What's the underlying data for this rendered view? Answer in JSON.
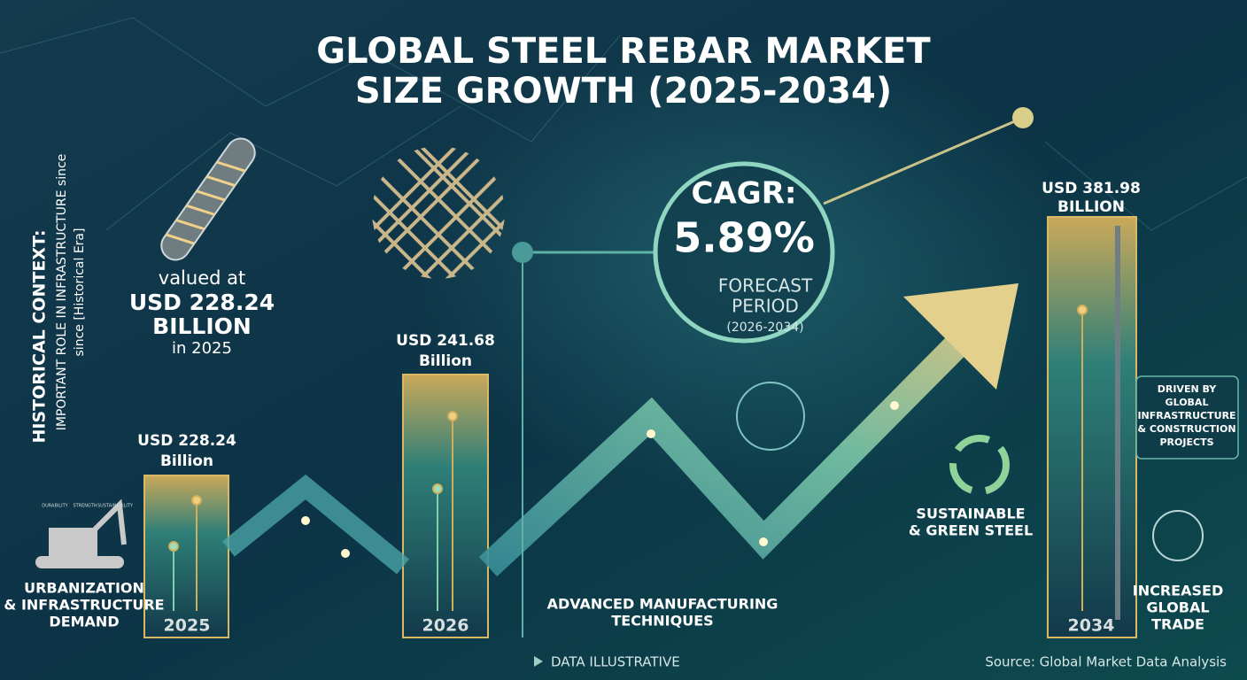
{
  "title_lines": [
    "GLOBAL STEEL REBAR MARKET",
    "SIZE GROWTH (2025-2034)"
  ],
  "historical_context": {
    "heading": "HISTORICAL CONTEXT:",
    "lines": [
      "IMPORTANT ROLE IN INFRASTRUCTURE since",
      "since [Historical Era]"
    ]
  },
  "icon_labels": [
    "DURABILITY",
    "STRENGTH",
    "SUSTAINABILITY"
  ],
  "highlight": {
    "prefix": "valued at",
    "amount": "USD 228.24",
    "unit": "BILLION",
    "suffix": "in 2025"
  },
  "cagr": {
    "label": "CAGR:",
    "value": "5.89%",
    "period_lines": [
      "FORECAST",
      "PERIOD"
    ],
    "range": "(2026-2034)"
  },
  "bars": [
    {
      "year": "2025",
      "value_lines": [
        "USD 228.24",
        "Billion"
      ]
    },
    {
      "year": "2026",
      "value_lines": [
        "USD 241.68",
        "Billion"
      ]
    },
    {
      "year": "2034",
      "value_lines": [
        "USD 381.98",
        "BILLION"
      ]
    }
  ],
  "drivers": {
    "urbanization": [
      "URBANIZATION",
      "& INFRASTRUCTURE",
      "DEMAND"
    ],
    "manufacturing": [
      "ADVANCED MANUFACTURING",
      "TECHNIQUES"
    ],
    "sustainable": [
      "SUSTAINABLE",
      "& GREEN STEEL"
    ],
    "driven_by": [
      "DRIVEN BY",
      "GLOBAL",
      "INFRASTRUCTURE",
      "& CONSTRUCTION",
      "PROJECTS"
    ],
    "trade": [
      "INCREASED",
      "GLOBAL",
      "TRADE"
    ]
  },
  "footer": {
    "note": "DATA ILLUSTRATIVE",
    "source": "Source: Global Market Data Analysis"
  }
}
